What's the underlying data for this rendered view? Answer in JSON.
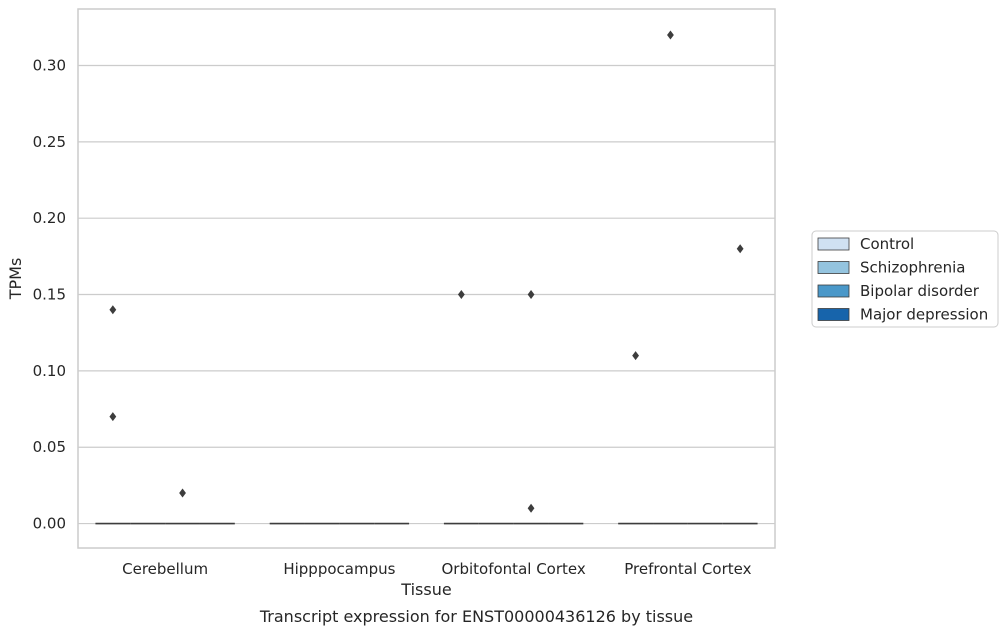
{
  "chart_data": {
    "type": "box",
    "caption": "Transcript expression for ENST00000436126 by tissue",
    "xlabel": "Tissue",
    "ylabel": "TPMs",
    "ylim": [
      -0.016,
      0.337
    ],
    "yticks": [
      0.0,
      0.05,
      0.1,
      0.15,
      0.2,
      0.25,
      0.3
    ],
    "ytick_labels": [
      "0.00",
      "0.05",
      "0.10",
      "0.15",
      "0.20",
      "0.25",
      "0.30"
    ],
    "grid": true,
    "legend_position": "right",
    "categories": [
      "Cerebellum",
      "Hipppocampus",
      "Orbitofontal Cortex",
      "Prefrontal Cortex"
    ],
    "series": [
      {
        "name": "Control",
        "color": "#d0e1f2",
        "median": [
          0,
          0,
          0,
          0
        ],
        "outliers": [
          [
            0.14,
            0.07
          ],
          [],
          [
            0.15
          ],
          [
            0.11
          ]
        ]
      },
      {
        "name": "Schizophrenia",
        "color": "#94c4df",
        "median": [
          0,
          0,
          0,
          0
        ],
        "outliers": [
          [],
          [],
          [],
          [
            0.32
          ]
        ]
      },
      {
        "name": "Bipolar disorder",
        "color": "#4a98c9",
        "median": [
          0,
          0,
          0,
          0
        ],
        "outliers": [
          [
            0.02
          ],
          [],
          [
            0.15,
            0.01
          ],
          []
        ]
      },
      {
        "name": "Major depression",
        "color": "#1764ab",
        "median": [
          0,
          0,
          0,
          0
        ],
        "outliers": [
          [],
          [],
          [],
          [
            0.18
          ]
        ]
      }
    ]
  }
}
